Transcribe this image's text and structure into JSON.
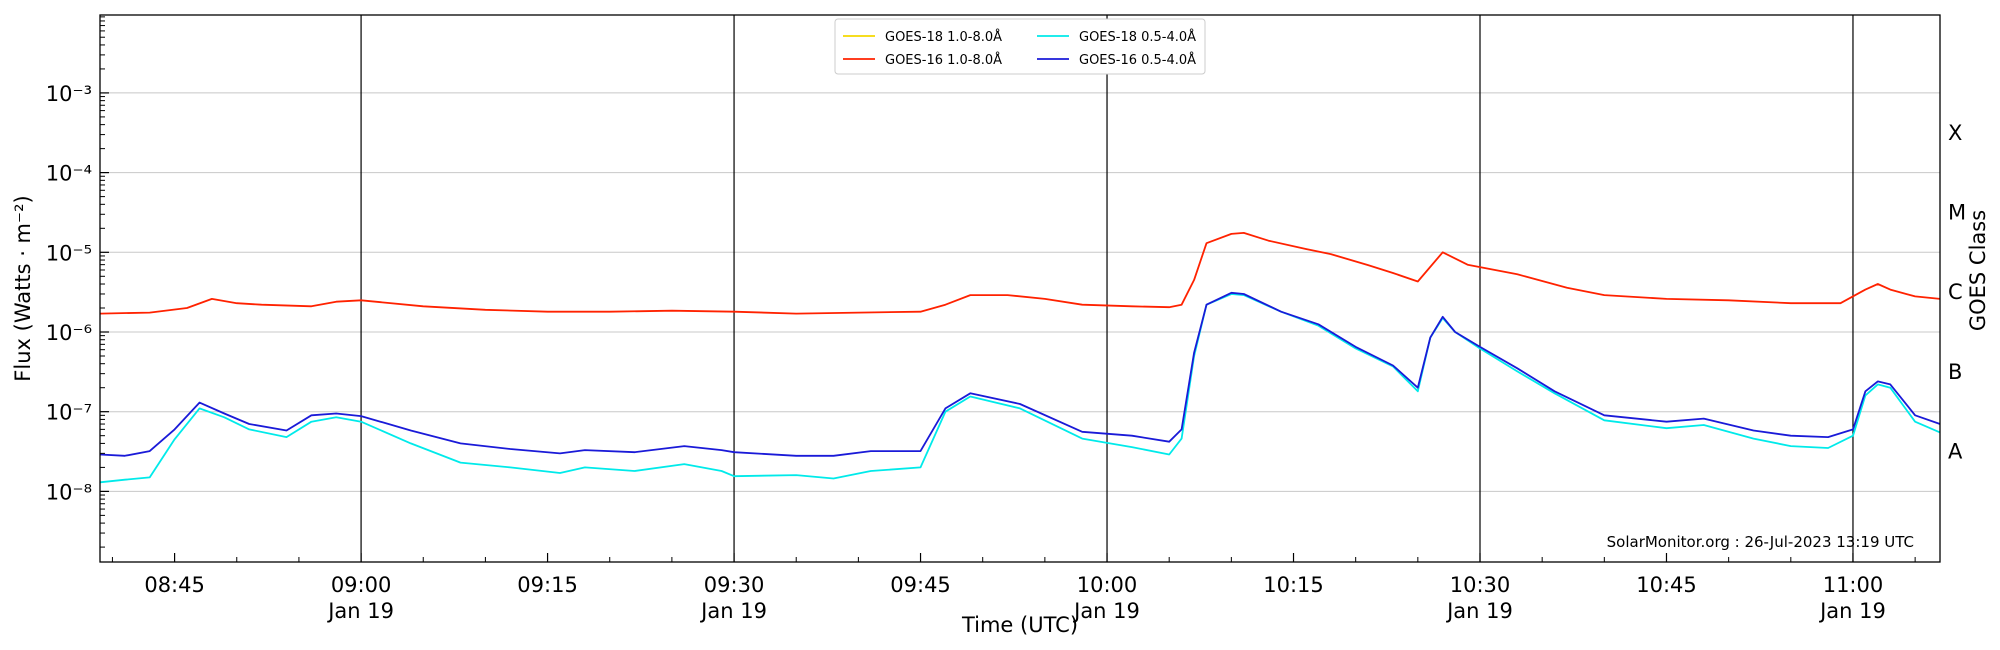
{
  "chart_data": {
    "type": "line",
    "xlabel": "Time (UTC)",
    "ylabel": "Flux (Watts · m⁻²)",
    "right_label": "GOES Class",
    "y_scale": "log",
    "ylim": [
      1.3e-09,
      0.0095
    ],
    "xlim": [
      "08:39",
      "11:07"
    ],
    "x_ticks": [
      {
        "t": "08:45",
        "label": "08:45",
        "sub": ""
      },
      {
        "t": "09:00",
        "label": "09:00",
        "sub": "Jan 19"
      },
      {
        "t": "09:15",
        "label": "09:15",
        "sub": ""
      },
      {
        "t": "09:30",
        "label": "09:30",
        "sub": "Jan 19"
      },
      {
        "t": "09:45",
        "label": "09:45",
        "sub": ""
      },
      {
        "t": "10:00",
        "label": "10:00",
        "sub": "Jan 19"
      },
      {
        "t": "10:15",
        "label": "10:15",
        "sub": ""
      },
      {
        "t": "10:30",
        "label": "10:30",
        "sub": "Jan 19"
      },
      {
        "t": "10:45",
        "label": "10:45",
        "sub": ""
      },
      {
        "t": "11:00",
        "label": "11:00",
        "sub": "Jan 19"
      }
    ],
    "vlines": [
      "09:00",
      "09:30",
      "10:00",
      "10:30",
      "11:00"
    ],
    "y_ticks": [
      {
        "value": 1e-08,
        "label": "10⁻⁸"
      },
      {
        "value": 1e-07,
        "label": "10⁻⁷"
      },
      {
        "value": 1e-06,
        "label": "10⁻⁶"
      },
      {
        "value": 1e-05,
        "label": "10⁻⁵"
      },
      {
        "value": 0.0001,
        "label": "10⁻⁴"
      },
      {
        "value": 0.001,
        "label": "10⁻³"
      }
    ],
    "goes_classes": [
      {
        "label": "A",
        "value": 3.16e-08
      },
      {
        "label": "B",
        "value": 3.16e-07
      },
      {
        "label": "C",
        "value": 3.16e-06
      },
      {
        "label": "M",
        "value": 3.16e-05
      },
      {
        "label": "X",
        "value": 0.000316
      }
    ],
    "grid": true,
    "legend_position": "top-center",
    "credit": "SolarMonitor.org : 26-Jul-2023 13:19 UTC",
    "series": [
      {
        "name": "GOES-18 1.0-8.0Å",
        "color": "#f5d800",
        "points": []
      },
      {
        "name": "GOES-16 1.0-8.0Å",
        "color": "#ff2200",
        "points": [
          [
            "08:39",
            1.7e-06
          ],
          [
            "08:43",
            1.75e-06
          ],
          [
            "08:46",
            2e-06
          ],
          [
            "08:48",
            2.6e-06
          ],
          [
            "08:50",
            2.3e-06
          ],
          [
            "08:52",
            2.2e-06
          ],
          [
            "08:56",
            2.1e-06
          ],
          [
            "08:58",
            2.4e-06
          ],
          [
            "09:00",
            2.5e-06
          ],
          [
            "09:05",
            2.1e-06
          ],
          [
            "09:10",
            1.9e-06
          ],
          [
            "09:15",
            1.8e-06
          ],
          [
            "09:20",
            1.8e-06
          ],
          [
            "09:25",
            1.85e-06
          ],
          [
            "09:30",
            1.8e-06
          ],
          [
            "09:35",
            1.7e-06
          ],
          [
            "09:40",
            1.75e-06
          ],
          [
            "09:45",
            1.8e-06
          ],
          [
            "09:47",
            2.2e-06
          ],
          [
            "09:49",
            2.9e-06
          ],
          [
            "09:52",
            2.9e-06
          ],
          [
            "09:55",
            2.6e-06
          ],
          [
            "09:58",
            2.2e-06
          ],
          [
            "10:02",
            2.1e-06
          ],
          [
            "10:05",
            2.05e-06
          ],
          [
            "10:06",
            2.2e-06
          ],
          [
            "10:07",
            4.5e-06
          ],
          [
            "10:08",
            1.3e-05
          ],
          [
            "10:10",
            1.7e-05
          ],
          [
            "10:11",
            1.75e-05
          ],
          [
            "10:13",
            1.4e-05
          ],
          [
            "10:16",
            1.1e-05
          ],
          [
            "10:18",
            9.5e-06
          ],
          [
            "10:21",
            6.9e-06
          ],
          [
            "10:23",
            5.5e-06
          ],
          [
            "10:25",
            4.3e-06
          ],
          [
            "10:27",
            1e-05
          ],
          [
            "10:29",
            7e-06
          ],
          [
            "10:33",
            5.3e-06
          ],
          [
            "10:37",
            3.6e-06
          ],
          [
            "10:40",
            2.9e-06
          ],
          [
            "10:45",
            2.6e-06
          ],
          [
            "10:50",
            2.5e-06
          ],
          [
            "10:55",
            2.3e-06
          ],
          [
            "10:59",
            2.3e-06
          ],
          [
            "11:01",
            3.4e-06
          ],
          [
            "11:02",
            4e-06
          ],
          [
            "11:03",
            3.4e-06
          ],
          [
            "11:05",
            2.8e-06
          ],
          [
            "11:07",
            2.6e-06
          ]
        ]
      },
      {
        "name": "GOES-18 0.5-4.0Å",
        "color": "#00eaea",
        "points": [
          [
            "08:39",
            1.3e-08
          ],
          [
            "08:41",
            1.4e-08
          ],
          [
            "08:43",
            1.5e-08
          ],
          [
            "08:45",
            4.5e-08
          ],
          [
            "08:47",
            1.1e-07
          ],
          [
            "08:49",
            8.5e-08
          ],
          [
            "08:51",
            6e-08
          ],
          [
            "08:54",
            4.8e-08
          ],
          [
            "08:56",
            7.5e-08
          ],
          [
            "08:58",
            8.5e-08
          ],
          [
            "09:00",
            7.5e-08
          ],
          [
            "09:04",
            4e-08
          ],
          [
            "09:08",
            2.3e-08
          ],
          [
            "09:12",
            2e-08
          ],
          [
            "09:16",
            1.7e-08
          ],
          [
            "09:18",
            2e-08
          ],
          [
            "09:22",
            1.8e-08
          ],
          [
            "09:26",
            2.2e-08
          ],
          [
            "09:29",
            1.8e-08
          ],
          [
            "09:30",
            1.55e-08
          ],
          [
            "09:35",
            1.6e-08
          ],
          [
            "09:38",
            1.45e-08
          ],
          [
            "09:41",
            1.8e-08
          ],
          [
            "09:45",
            2e-08
          ],
          [
            "09:47",
            1e-07
          ],
          [
            "09:49",
            1.55e-07
          ],
          [
            "09:53",
            1.1e-07
          ],
          [
            "09:58",
            4.6e-08
          ],
          [
            "10:02",
            3.6e-08
          ],
          [
            "10:05",
            2.9e-08
          ],
          [
            "10:06",
            4.6e-08
          ],
          [
            "10:07",
            5e-07
          ],
          [
            "10:08",
            2.2e-06
          ],
          [
            "10:10",
            3e-06
          ],
          [
            "10:11",
            2.9e-06
          ],
          [
            "10:14",
            1.8e-06
          ],
          [
            "10:17",
            1.2e-06
          ],
          [
            "10:20",
            6.2e-07
          ],
          [
            "10:23",
            3.7e-07
          ],
          [
            "10:25",
            1.8e-07
          ],
          [
            "10:26",
            8.5e-07
          ],
          [
            "10:27",
            1.5e-06
          ],
          [
            "10:28",
            1e-06
          ],
          [
            "10:30",
            6.2e-07
          ],
          [
            "10:33",
            3.2e-07
          ],
          [
            "10:36",
            1.7e-07
          ],
          [
            "10:40",
            7.8e-08
          ],
          [
            "10:45",
            6.2e-08
          ],
          [
            "10:48",
            6.8e-08
          ],
          [
            "10:52",
            4.6e-08
          ],
          [
            "10:55",
            3.7e-08
          ],
          [
            "10:58",
            3.5e-08
          ],
          [
            "11:00",
            5e-08
          ],
          [
            "11:01",
            1.6e-07
          ],
          [
            "11:02",
            2.2e-07
          ],
          [
            "11:03",
            2e-07
          ],
          [
            "11:05",
            7.5e-08
          ],
          [
            "11:07",
            5.5e-08
          ]
        ]
      },
      {
        "name": "GOES-16 0.5-4.0Å",
        "color": "#1a1ad8",
        "points": [
          [
            "08:39",
            2.9e-08
          ],
          [
            "08:41",
            2.8e-08
          ],
          [
            "08:43",
            3.2e-08
          ],
          [
            "08:45",
            6e-08
          ],
          [
            "08:47",
            1.3e-07
          ],
          [
            "08:49",
            9.5e-08
          ],
          [
            "08:51",
            7e-08
          ],
          [
            "08:54",
            5.8e-08
          ],
          [
            "08:56",
            9e-08
          ],
          [
            "08:58",
            9.5e-08
          ],
          [
            "09:00",
            8.8e-08
          ],
          [
            "09:04",
            5.8e-08
          ],
          [
            "09:08",
            4e-08
          ],
          [
            "09:12",
            3.4e-08
          ],
          [
            "09:16",
            3e-08
          ],
          [
            "09:18",
            3.3e-08
          ],
          [
            "09:22",
            3.1e-08
          ],
          [
            "09:26",
            3.7e-08
          ],
          [
            "09:29",
            3.3e-08
          ],
          [
            "09:30",
            3.1e-08
          ],
          [
            "09:35",
            2.8e-08
          ],
          [
            "09:38",
            2.8e-08
          ],
          [
            "09:41",
            3.2e-08
          ],
          [
            "09:45",
            3.2e-08
          ],
          [
            "09:47",
            1.1e-07
          ],
          [
            "09:49",
            1.7e-07
          ],
          [
            "09:53",
            1.25e-07
          ],
          [
            "09:58",
            5.6e-08
          ],
          [
            "10:02",
            5e-08
          ],
          [
            "10:05",
            4.2e-08
          ],
          [
            "10:06",
            6e-08
          ],
          [
            "10:07",
            5.5e-07
          ],
          [
            "10:08",
            2.2e-06
          ],
          [
            "10:10",
            3.1e-06
          ],
          [
            "10:11",
            3e-06
          ],
          [
            "10:14",
            1.8e-06
          ],
          [
            "10:17",
            1.25e-06
          ],
          [
            "10:20",
            6.5e-07
          ],
          [
            "10:23",
            3.8e-07
          ],
          [
            "10:25",
            2e-07
          ],
          [
            "10:26",
            8.5e-07
          ],
          [
            "10:27",
            1.55e-06
          ],
          [
            "10:28",
            1e-06
          ],
          [
            "10:30",
            6.5e-07
          ],
          [
            "10:33",
            3.5e-07
          ],
          [
            "10:36",
            1.8e-07
          ],
          [
            "10:40",
            9e-08
          ],
          [
            "10:45",
            7.5e-08
          ],
          [
            "10:48",
            8.2e-08
          ],
          [
            "10:52",
            5.8e-08
          ],
          [
            "10:55",
            5e-08
          ],
          [
            "10:58",
            4.8e-08
          ],
          [
            "11:00",
            6e-08
          ],
          [
            "11:01",
            1.8e-07
          ],
          [
            "11:02",
            2.4e-07
          ],
          [
            "11:03",
            2.2e-07
          ],
          [
            "11:05",
            9e-08
          ],
          [
            "11:07",
            7e-08
          ]
        ]
      }
    ]
  }
}
